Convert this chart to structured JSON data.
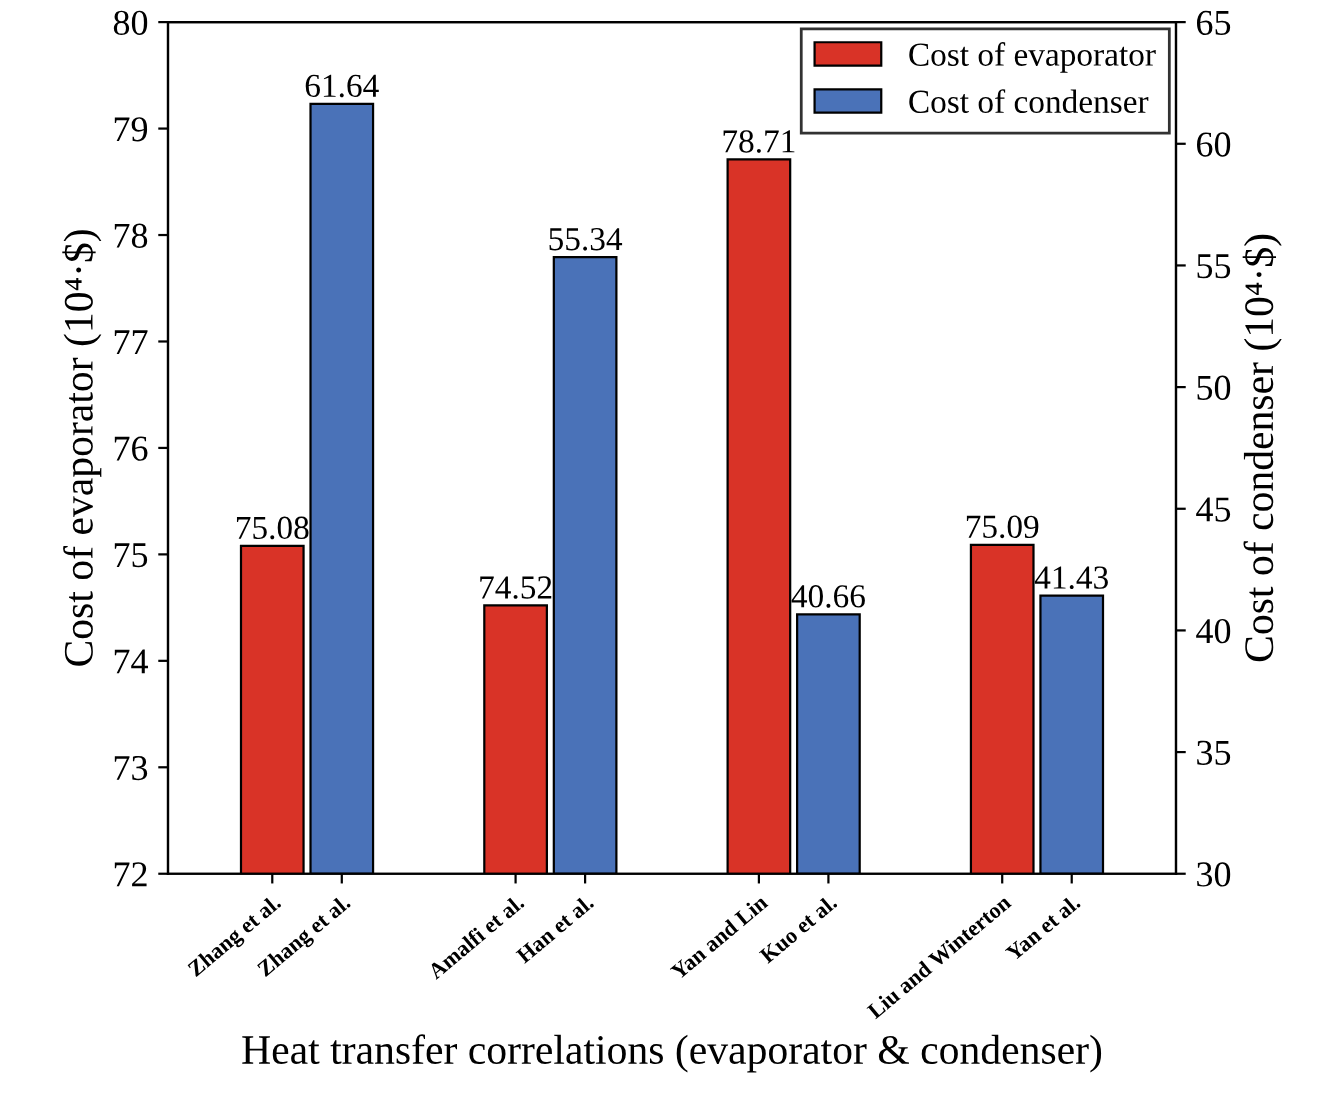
{
  "chart_data": {
    "type": "bar",
    "xlabel": "Heat transfer correlations (evaporator & condenser)",
    "ylabel": "Cost of evaporator (10⁴·$)",
    "y2label": "Cost of condenser (10⁴·$)",
    "categories": [
      "Zhang et al.",
      "Zhang et al.",
      "Amalfi et al.",
      "Han et al.",
      "Yan and Lin",
      "Kuo et al.",
      "Liu and Winterton",
      "Yan et al."
    ],
    "series": [
      {
        "name": "Cost of evaporator",
        "color": "#d93327",
        "values": [
          75.08,
          null,
          74.52,
          null,
          78.71,
          null,
          75.09,
          null
        ]
      },
      {
        "name": "Cost of condenser",
        "color": "#4a72b8",
        "axis": "y2",
        "values": [
          null,
          61.64,
          null,
          55.34,
          null,
          40.66,
          null,
          41.43
        ]
      }
    ],
    "ylim": [
      72,
      80
    ],
    "yticks": [
      72,
      73,
      74,
      75,
      76,
      77,
      78,
      79,
      80
    ],
    "y2lim": [
      30,
      65
    ],
    "y2ticks": [
      30,
      35,
      40,
      45,
      50,
      55,
      60,
      65
    ],
    "data_labels": true,
    "legend": "top right",
    "grid": false
  }
}
